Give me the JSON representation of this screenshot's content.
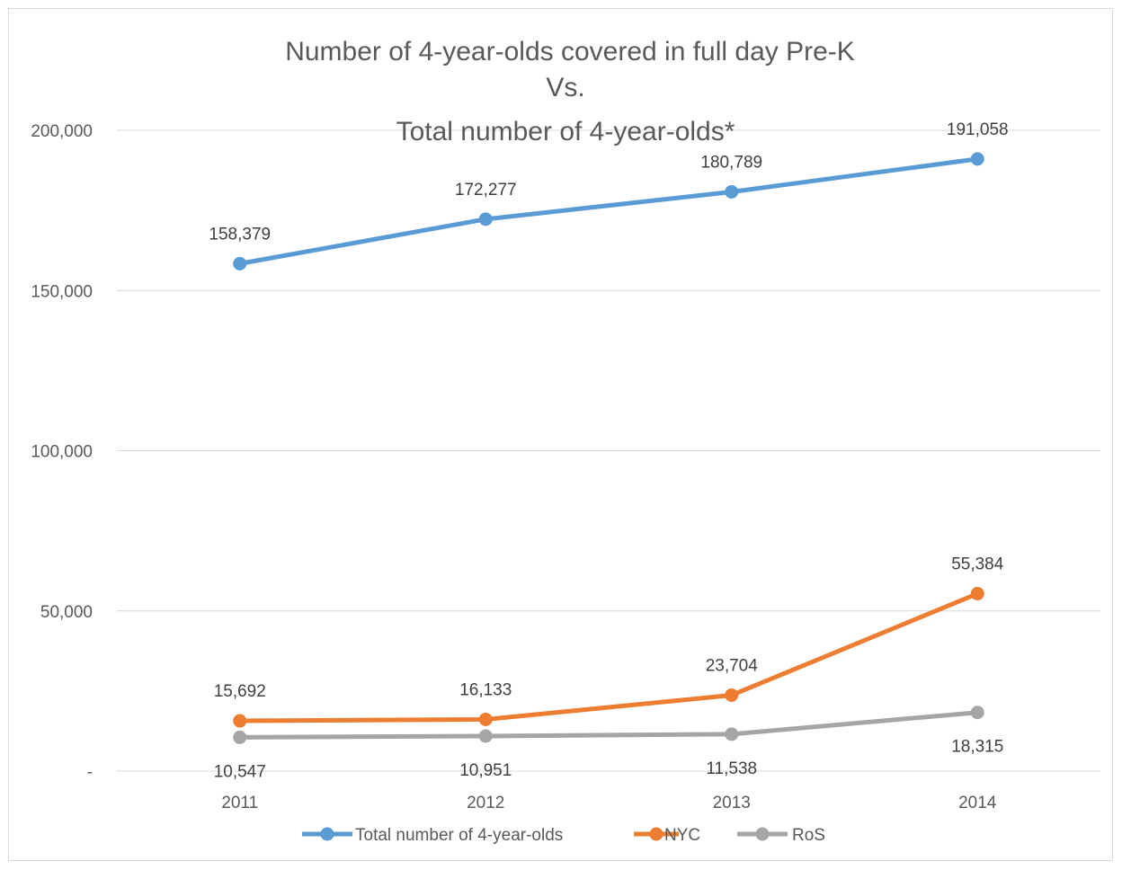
{
  "chart_data": {
    "type": "line",
    "title_lines": [
      "Number of 4-year-olds covered in full day  Pre-K",
      "Vs.",
      "Total number of 4-year-olds*"
    ],
    "categories": [
      "2011",
      "2012",
      "2013",
      "2014"
    ],
    "ylim": [
      0,
      200000
    ],
    "y_ticks": [
      0,
      50000,
      100000,
      150000,
      200000
    ],
    "y_tick_labels": [
      "-",
      "50,000",
      "100,000",
      "150,000",
      "200,000"
    ],
    "grid": true,
    "legend_position": "bottom",
    "series": [
      {
        "name": "Total number of 4-year-olds",
        "color": "#5B9BD5",
        "values": [
          158379,
          172277,
          180789,
          191058
        ],
        "labels": [
          "158,379",
          "172,277",
          "180,789",
          "191,058"
        ],
        "label_position": "above"
      },
      {
        "name": "NYC",
        "color": "#ED7D31",
        "values": [
          15692,
          16133,
          23704,
          55384
        ],
        "labels": [
          "15,692",
          "16,133",
          "23,704",
          "55,384"
        ],
        "label_position": "above"
      },
      {
        "name": "RoS",
        "color": "#A5A5A5",
        "values": [
          10547,
          10951,
          11538,
          18315
        ],
        "labels": [
          "10,547",
          "10,951",
          "11,538",
          "18,315"
        ],
        "label_position": "below"
      }
    ]
  }
}
